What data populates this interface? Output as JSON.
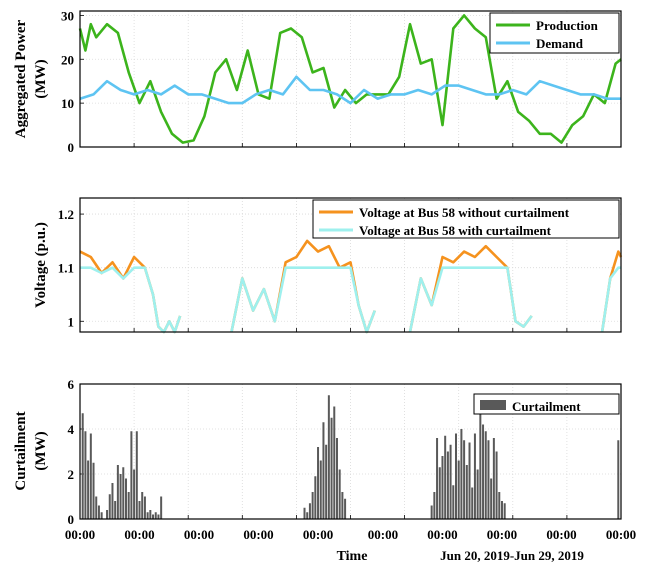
{
  "chart_data": [
    {
      "type": "line",
      "ylabel": "Aggregated Power",
      "ylabel_unit": "(MW)",
      "ylim": [
        0,
        31
      ],
      "yticks": [
        "0",
        "10",
        "20",
        "30"
      ],
      "grid": true,
      "legend_position": "top-right",
      "series": [
        {
          "name": "Production",
          "color": "#3cb41c",
          "x": [
            0,
            0.1,
            0.2,
            0.3,
            0.5,
            0.7,
            0.9,
            1.1,
            1.3,
            1.5,
            1.7,
            1.9,
            2.1,
            2.3,
            2.5,
            2.7,
            2.9,
            3.1,
            3.3,
            3.5,
            3.7,
            3.9,
            4.1,
            4.3,
            4.5,
            4.7,
            4.9,
            5.1,
            5.3,
            5.5,
            5.7,
            5.9,
            6.1,
            6.3,
            6.5,
            6.7,
            6.9,
            7.1,
            7.3,
            7.5,
            7.7,
            7.9,
            8.1,
            8.3,
            8.5,
            8.7,
            8.9,
            9.1,
            9.3,
            9.5,
            9.7,
            9.9,
            10
          ],
          "values": [
            27,
            22,
            28,
            25,
            28,
            26,
            17,
            10,
            15,
            8,
            3,
            1,
            1.5,
            7,
            17,
            20,
            13,
            22,
            12,
            11,
            26,
            27,
            25,
            17,
            18,
            9,
            13,
            10,
            12,
            12,
            12,
            16,
            28,
            19,
            20,
            5,
            27,
            30,
            27,
            25,
            11,
            15,
            8,
            6,
            3,
            3,
            1,
            5,
            7,
            12,
            10,
            19,
            20
          ]
        },
        {
          "name": "Demand",
          "color": "#5ec4f2",
          "x": [
            0,
            0.25,
            0.5,
            0.75,
            1,
            1.25,
            1.5,
            1.75,
            2,
            2.25,
            2.5,
            2.75,
            3,
            3.25,
            3.5,
            3.75,
            4,
            4.25,
            4.5,
            4.75,
            5,
            5.25,
            5.5,
            5.75,
            6,
            6.25,
            6.5,
            6.75,
            7,
            7.25,
            7.5,
            7.75,
            8,
            8.25,
            8.5,
            8.75,
            9,
            9.25,
            9.5,
            9.75,
            10
          ],
          "values": [
            11,
            12,
            15,
            13,
            12,
            13,
            12,
            14,
            12,
            12,
            11,
            10,
            10,
            12,
            13,
            12,
            16,
            13,
            13,
            12,
            10,
            13,
            11,
            12,
            12,
            13,
            12,
            14,
            14,
            13,
            12,
            12,
            13,
            12,
            15,
            14,
            13,
            12,
            12,
            11,
            11
          ]
        }
      ]
    },
    {
      "type": "line",
      "ylabel": "Voltage (p.u.)",
      "ylim": [
        0.98,
        1.23
      ],
      "yticks": [
        "1",
        "1.1",
        "1.2"
      ],
      "grid": true,
      "legend_position": "top-right",
      "series": [
        {
          "name": "Voltage at Bus 58  without curtailment",
          "color": "#f5921e",
          "segments": [
            {
              "x": [
                0,
                0.2,
                0.4,
                0.6,
                0.8,
                1.0,
                1.2,
                1.35,
                1.45,
                1.55,
                1.65,
                1.75,
                1.85
              ],
              "values": [
                1.13,
                1.12,
                1.09,
                1.11,
                1.08,
                1.12,
                1.1,
                1.05,
                0.99,
                0.98,
                1.0,
                0.98,
                1.01
              ]
            },
            {
              "x": [
                2.8,
                3.0,
                3.2,
                3.4,
                3.6,
                3.8,
                4.0,
                4.2,
                4.4,
                4.6,
                4.8,
                5.0,
                5.15,
                5.3,
                5.45
              ],
              "values": [
                0.98,
                1.08,
                1.02,
                1.06,
                1.0,
                1.11,
                1.12,
                1.15,
                1.13,
                1.14,
                1.1,
                1.11,
                1.03,
                0.98,
                1.02
              ]
            },
            {
              "x": [
                6.1,
                6.3,
                6.5,
                6.7,
                6.9,
                7.1,
                7.3,
                7.5,
                7.7,
                7.9,
                8.05,
                8.2,
                8.35
              ],
              "values": [
                0.98,
                1.08,
                1.03,
                1.12,
                1.11,
                1.13,
                1.12,
                1.14,
                1.12,
                1.1,
                1.0,
                0.99,
                1.01
              ]
            },
            {
              "x": [
                9.65,
                9.8,
                9.95,
                10
              ],
              "values": [
                0.98,
                1.08,
                1.13,
                1.12
              ]
            }
          ]
        },
        {
          "name": "Voltage at Bus 58 with curtailment",
          "color": "#9ef0ee",
          "segments": [
            {
              "x": [
                0,
                0.2,
                0.4,
                0.6,
                0.8,
                1.0,
                1.2,
                1.35,
                1.45,
                1.55,
                1.65,
                1.75,
                1.85
              ],
              "values": [
                1.1,
                1.1,
                1.09,
                1.1,
                1.08,
                1.1,
                1.1,
                1.05,
                0.99,
                0.98,
                1.0,
                0.98,
                1.01
              ]
            },
            {
              "x": [
                2.8,
                3.0,
                3.2,
                3.4,
                3.6,
                3.8,
                4.0,
                4.2,
                4.4,
                4.6,
                4.8,
                5.0,
                5.15,
                5.3,
                5.45
              ],
              "values": [
                0.98,
                1.08,
                1.02,
                1.06,
                1.0,
                1.1,
                1.1,
                1.1,
                1.1,
                1.1,
                1.1,
                1.1,
                1.03,
                0.98,
                1.02
              ]
            },
            {
              "x": [
                6.1,
                6.3,
                6.5,
                6.7,
                6.9,
                7.1,
                7.3,
                7.5,
                7.7,
                7.9,
                8.05,
                8.2,
                8.35
              ],
              "values": [
                0.98,
                1.08,
                1.03,
                1.1,
                1.1,
                1.1,
                1.1,
                1.1,
                1.1,
                1.1,
                1.0,
                0.99,
                1.01
              ]
            },
            {
              "x": [
                9.65,
                9.8,
                9.95,
                10
              ],
              "values": [
                0.98,
                1.08,
                1.1,
                1.1
              ]
            }
          ]
        }
      ]
    },
    {
      "type": "bar",
      "ylabel": "Curtailment",
      "ylabel_unit": "(MW)",
      "ylim": [
        0,
        6
      ],
      "yticks": [
        "0",
        "2",
        "4",
        "6"
      ],
      "grid": true,
      "legend_position": "top-right",
      "xlabel": "Time",
      "date_range": "Jun 20, 2019-Jun 29, 2019",
      "xticks": [
        "00:00",
        "00:00",
        "00:00",
        "00:00",
        "00:00",
        "00:00",
        "00:00",
        "00:00",
        "00:00",
        "00:00"
      ],
      "series": [
        {
          "name": "Curtailment",
          "color": "#595959",
          "x": [
            0.05,
            0.1,
            0.15,
            0.2,
            0.25,
            0.3,
            0.35,
            0.4,
            0.5,
            0.55,
            0.6,
            0.65,
            0.7,
            0.75,
            0.8,
            0.85,
            0.9,
            0.95,
            1.0,
            1.05,
            1.1,
            1.15,
            1.2,
            1.25,
            1.3,
            1.35,
            1.4,
            1.45,
            1.5,
            4.15,
            4.2,
            4.25,
            4.3,
            4.35,
            4.4,
            4.45,
            4.5,
            4.55,
            4.6,
            4.65,
            4.7,
            4.75,
            4.8,
            4.85,
            4.9,
            6.5,
            6.55,
            6.6,
            6.65,
            6.7,
            6.75,
            6.8,
            6.85,
            6.9,
            6.95,
            7.0,
            7.05,
            7.1,
            7.15,
            7.2,
            7.25,
            7.3,
            7.35,
            7.4,
            7.45,
            7.5,
            7.55,
            7.6,
            7.65,
            7.7,
            7.75,
            7.8,
            7.85,
            9.95
          ],
          "values": [
            4.7,
            3.9,
            2.6,
            3.8,
            2.5,
            1.0,
            0.6,
            0.3,
            0.4,
            1.1,
            1.6,
            0.8,
            2.4,
            2.0,
            2.3,
            1.8,
            1.2,
            3.9,
            2.2,
            3.9,
            0.8,
            1.2,
            1.0,
            0.3,
            0.4,
            0.2,
            0.3,
            0.2,
            1.0,
            0.5,
            0.3,
            0.7,
            1.2,
            1.9,
            3.2,
            2.6,
            4.3,
            3.3,
            5.5,
            4.5,
            5.0,
            3.6,
            2.2,
            1.2,
            0.9,
            0.6,
            1.2,
            3.6,
            2.3,
            2.8,
            3.7,
            3.0,
            3.3,
            1.5,
            3.8,
            2.6,
            4.0,
            3.5,
            2.4,
            3.4,
            1.4,
            3.8,
            2.2,
            4.8,
            4.2,
            3.9,
            3.5,
            1.8,
            3.6,
            3.0,
            1.2,
            0.8,
            0.7,
            3.5
          ]
        }
      ]
    }
  ]
}
